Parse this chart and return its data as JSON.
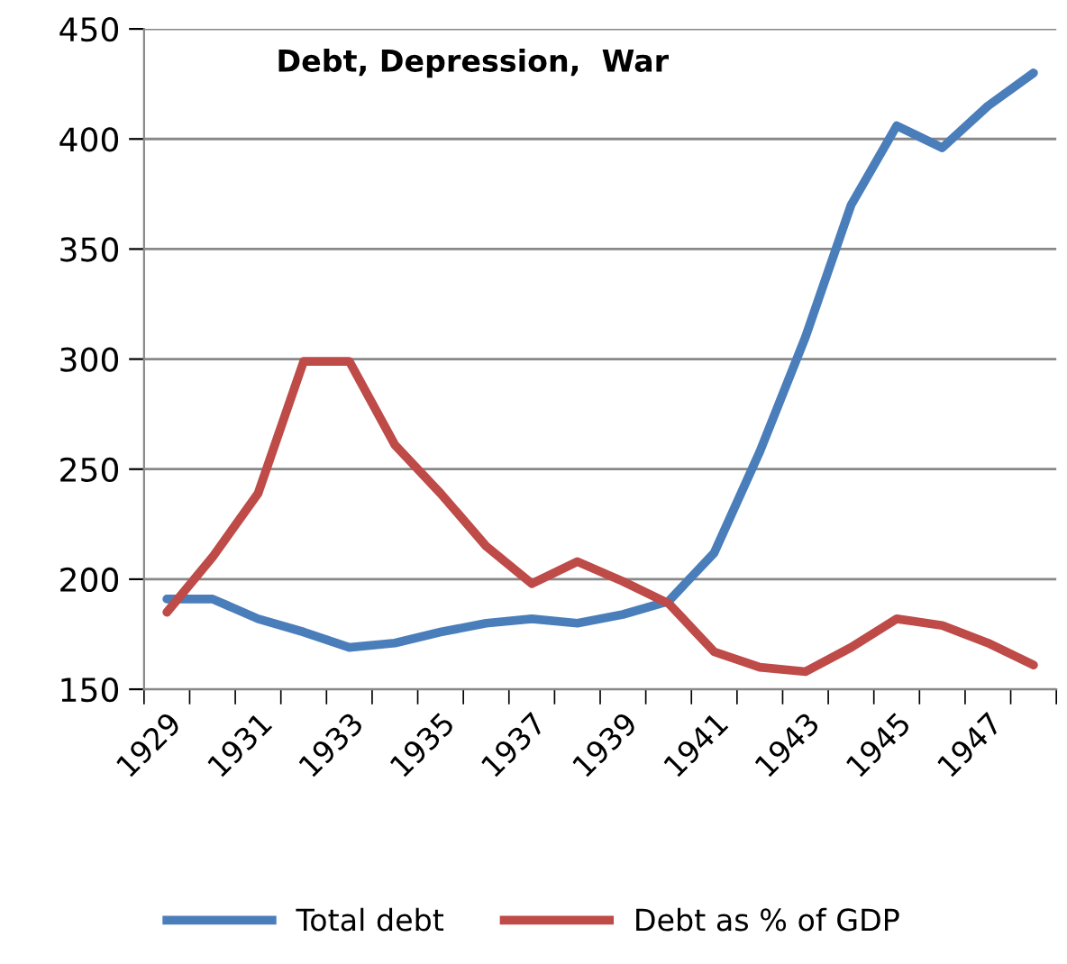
{
  "chart_data": {
    "type": "line",
    "title": "Debt, Depression,  War",
    "categories": [
      "1929",
      null,
      "1931",
      null,
      "1933",
      null,
      "1935",
      null,
      "1937",
      null,
      "1939",
      null,
      "1941",
      null,
      "1943",
      null,
      "1945",
      null,
      "1947",
      null
    ],
    "series": [
      {
        "name": "Total debt",
        "color": "#4a7ebb",
        "values": [
          191,
          191,
          182,
          176,
          169,
          171,
          176,
          180,
          182,
          180,
          184,
          190,
          212,
          258,
          310,
          370,
          406,
          396,
          415,
          430
        ]
      },
      {
        "name": "Debt as % of GDP",
        "color": "#be4b48",
        "values": [
          185,
          210,
          239,
          299,
          299,
          261,
          239,
          215,
          198,
          208,
          199,
          189,
          167,
          160,
          158,
          169,
          182,
          179,
          171,
          161
        ]
      }
    ],
    "ylim": [
      150,
      450
    ],
    "yticks": [
      150,
      200,
      250,
      300,
      350,
      400,
      450
    ],
    "grid": "y",
    "legend": "bottom",
    "marker": "none",
    "line_style": "solid"
  }
}
